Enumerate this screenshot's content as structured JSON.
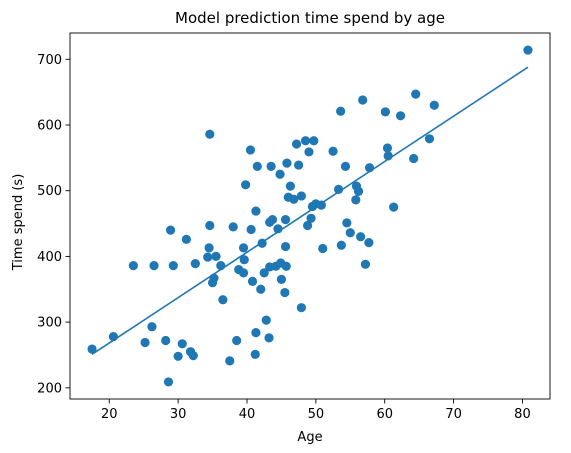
{
  "chart_data": {
    "type": "scatter",
    "title": "Model prediction time spend by age",
    "xlabel": "Age",
    "ylabel": "Time spend (s)",
    "xlim": [
      14.3,
      84.0
    ],
    "ylim": [
      183,
      740
    ],
    "xticks": [
      20,
      30,
      40,
      50,
      60,
      70,
      80
    ],
    "yticks": [
      200,
      300,
      400,
      500,
      600,
      700
    ],
    "grid": false,
    "colors": {
      "points": "#1f77b4",
      "fit_line": "#1f77b4"
    },
    "points": [
      [
        17.5,
        259
      ],
      [
        20.6,
        278
      ],
      [
        23.5,
        386
      ],
      [
        25.2,
        269
      ],
      [
        26.2,
        293
      ],
      [
        26.5,
        386
      ],
      [
        28.2,
        272
      ],
      [
        28.6,
        209
      ],
      [
        28.9,
        440
      ],
      [
        29.3,
        386
      ],
      [
        30.0,
        248
      ],
      [
        30.6,
        267
      ],
      [
        31.2,
        426
      ],
      [
        31.8,
        255
      ],
      [
        32.2,
        249
      ],
      [
        32.5,
        389
      ],
      [
        34.3,
        399
      ],
      [
        34.5,
        413
      ],
      [
        34.6,
        447
      ],
      [
        34.6,
        586
      ],
      [
        35.0,
        360
      ],
      [
        35.2,
        367
      ],
      [
        35.5,
        400
      ],
      [
        36.2,
        386
      ],
      [
        36.5,
        334
      ],
      [
        37.5,
        241
      ],
      [
        38.0,
        445
      ],
      [
        38.5,
        272
      ],
      [
        38.8,
        380
      ],
      [
        39.5,
        375
      ],
      [
        39.5,
        413
      ],
      [
        39.6,
        395
      ],
      [
        39.8,
        509
      ],
      [
        40.5,
        562
      ],
      [
        40.6,
        441
      ],
      [
        40.8,
        362
      ],
      [
        41.2,
        251
      ],
      [
        41.3,
        284
      ],
      [
        41.3,
        469
      ],
      [
        41.5,
        537
      ],
      [
        42.0,
        350
      ],
      [
        42.2,
        420
      ],
      [
        42.5,
        375
      ],
      [
        42.8,
        303
      ],
      [
        43.2,
        276
      ],
      [
        43.3,
        384
      ],
      [
        43.3,
        452
      ],
      [
        43.5,
        537
      ],
      [
        43.7,
        456
      ],
      [
        44.2,
        385
      ],
      [
        44.5,
        442
      ],
      [
        44.8,
        525
      ],
      [
        44.9,
        390
      ],
      [
        45.0,
        365
      ],
      [
        45.5,
        345
      ],
      [
        45.6,
        456
      ],
      [
        45.6,
        415
      ],
      [
        45.7,
        385
      ],
      [
        45.8,
        542
      ],
      [
        46.0,
        490
      ],
      [
        46.3,
        507
      ],
      [
        46.8,
        487
      ],
      [
        47.2,
        571
      ],
      [
        47.5,
        539
      ],
      [
        47.9,
        322
      ],
      [
        47.9,
        492
      ],
      [
        48.5,
        576
      ],
      [
        48.8,
        447
      ],
      [
        49.0,
        559
      ],
      [
        49.3,
        458
      ],
      [
        49.5,
        476
      ],
      [
        49.7,
        576
      ],
      [
        50.0,
        480
      ],
      [
        50.8,
        478
      ],
      [
        51.0,
        412
      ],
      [
        52.5,
        560
      ],
      [
        53.3,
        502
      ],
      [
        53.6,
        621
      ],
      [
        53.7,
        417
      ],
      [
        54.3,
        537
      ],
      [
        54.5,
        451
      ],
      [
        55.0,
        436
      ],
      [
        55.8,
        486
      ],
      [
        55.9,
        507
      ],
      [
        56.2,
        499
      ],
      [
        56.5,
        430
      ],
      [
        56.8,
        638
      ],
      [
        57.2,
        388
      ],
      [
        57.7,
        421
      ],
      [
        57.8,
        535
      ],
      [
        60.1,
        620
      ],
      [
        60.4,
        565
      ],
      [
        60.5,
        553
      ],
      [
        61.3,
        475
      ],
      [
        62.3,
        614
      ],
      [
        64.2,
        549
      ],
      [
        64.5,
        647
      ],
      [
        66.5,
        579
      ],
      [
        67.2,
        630
      ],
      [
        80.8,
        714
      ]
    ],
    "fit_line": {
      "x": [
        17.5,
        80.8
      ],
      "y": [
        251,
        688
      ]
    }
  }
}
